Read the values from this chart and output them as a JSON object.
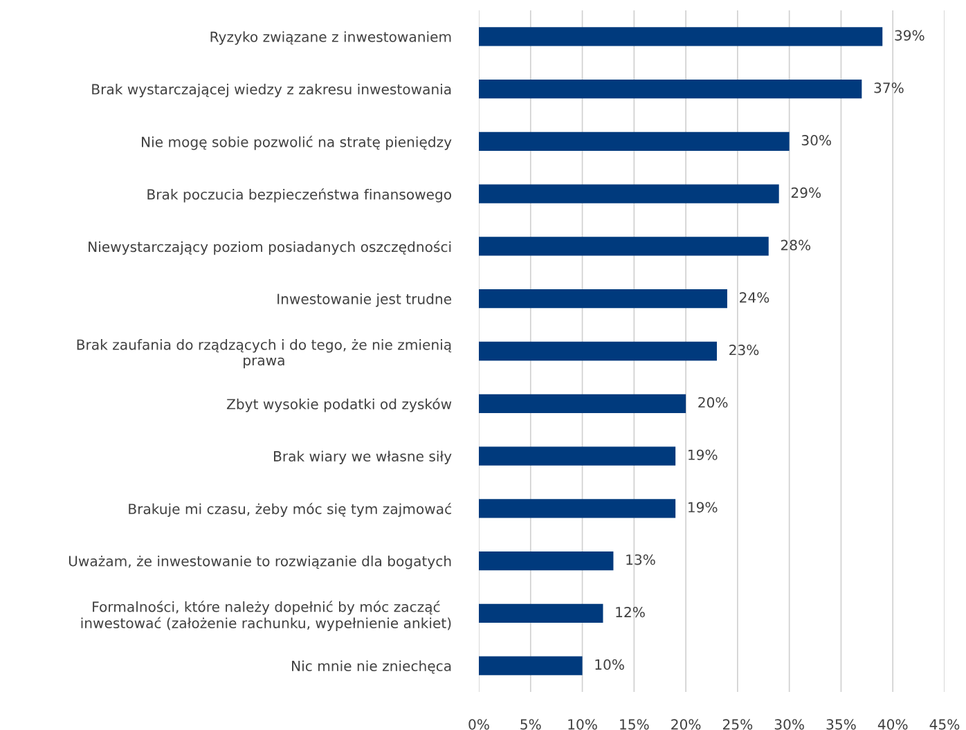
{
  "chart_data": {
    "type": "bar",
    "orientation": "horizontal",
    "categories": [
      "Ryzyko związane z inwestowaniem",
      "Brak wystarczającej wiedzy z zakresu inwestowania",
      "Nie mogę sobie pozwolić na stratę pieniędzy",
      "Brak poczucia bezpieczeństwa finansowego",
      "Niewystarczający poziom posiadanych oszczędności",
      "Inwestowanie jest trudne",
      "Brak zaufania do rządzących i do tego, że nie zmienią\nprawa",
      "Zbyt wysokie podatki od zysków",
      "Brak wiary we własne siły",
      "Brakuje mi czasu, żeby móc się tym zajmować",
      "Uważam, że inwestowanie to rozwiązanie dla bogatych",
      "Formalności, które należy dopełnić by móc zacząć\ninwestować (założenie rachunku, wypełnienie ankiet)",
      "Nic mnie nie zniechęca"
    ],
    "values": [
      39,
      37,
      30,
      29,
      28,
      24,
      23,
      20,
      19,
      19,
      13,
      12,
      10
    ],
    "value_labels": [
      "39%",
      "37%",
      "30%",
      "29%",
      "28%",
      "24%",
      "23%",
      "20%",
      "19%",
      "19%",
      "13%",
      "12%",
      "10%"
    ],
    "color": "#003a7d",
    "xlim": [
      0,
      45
    ],
    "xticks": [
      {
        "value": 0,
        "label": "0%"
      },
      {
        "value": 5,
        "label": "5%"
      },
      {
        "value": 10,
        "label": "10%"
      },
      {
        "value": 15,
        "label": "15%"
      },
      {
        "value": 20,
        "label": "20%"
      },
      {
        "value": 25,
        "label": "25%"
      },
      {
        "value": 30,
        "label": "30%"
      },
      {
        "value": 35,
        "label": "35%"
      },
      {
        "value": 40,
        "label": "40%"
      },
      {
        "value": 45,
        "label": "45%"
      }
    ],
    "grid": "x"
  }
}
